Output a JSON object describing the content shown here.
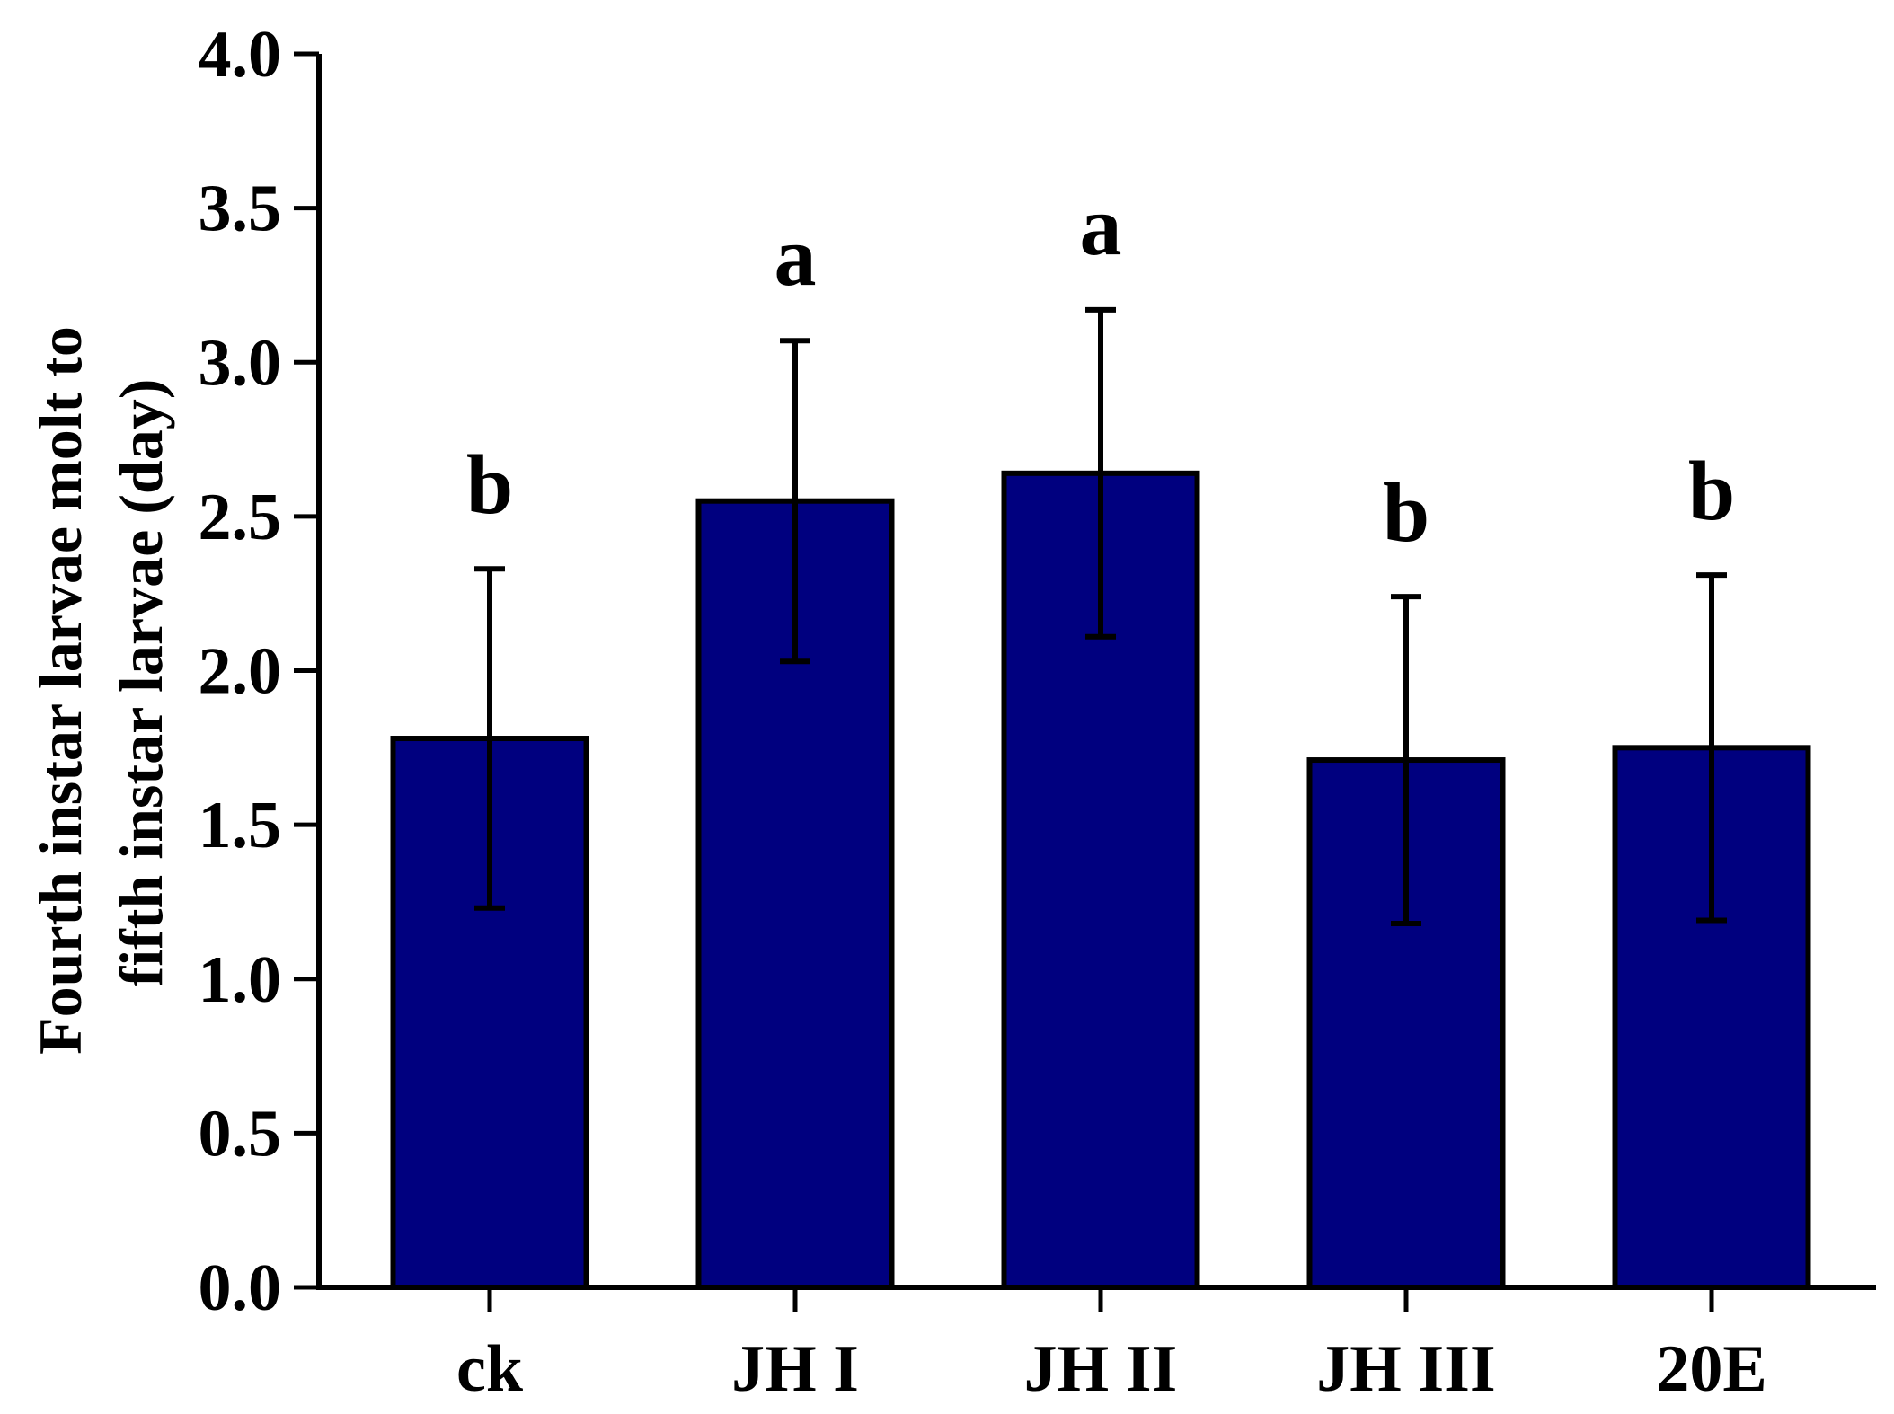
{
  "chart_data": {
    "type": "bar",
    "title": "",
    "xlabel": "",
    "ylabel_lines": [
      "Fourth instar larvae molt to",
      "fifth instar larvae (day)"
    ],
    "categories": [
      "ck",
      "JH I",
      "JH II",
      "JH III",
      "20E"
    ],
    "values": [
      1.78,
      2.55,
      2.64,
      1.71,
      1.75
    ],
    "error": [
      0.55,
      0.52,
      0.53,
      0.53,
      0.56
    ],
    "significance": [
      "b",
      "a",
      "a",
      "b",
      "b"
    ],
    "ylim": [
      0,
      4.0
    ],
    "yticks": [
      "0.0",
      "0.5",
      "1.0",
      "1.5",
      "2.0",
      "2.5",
      "3.0",
      "3.5",
      "4.0"
    ],
    "bar_color": "#00007F",
    "grid": false
  }
}
